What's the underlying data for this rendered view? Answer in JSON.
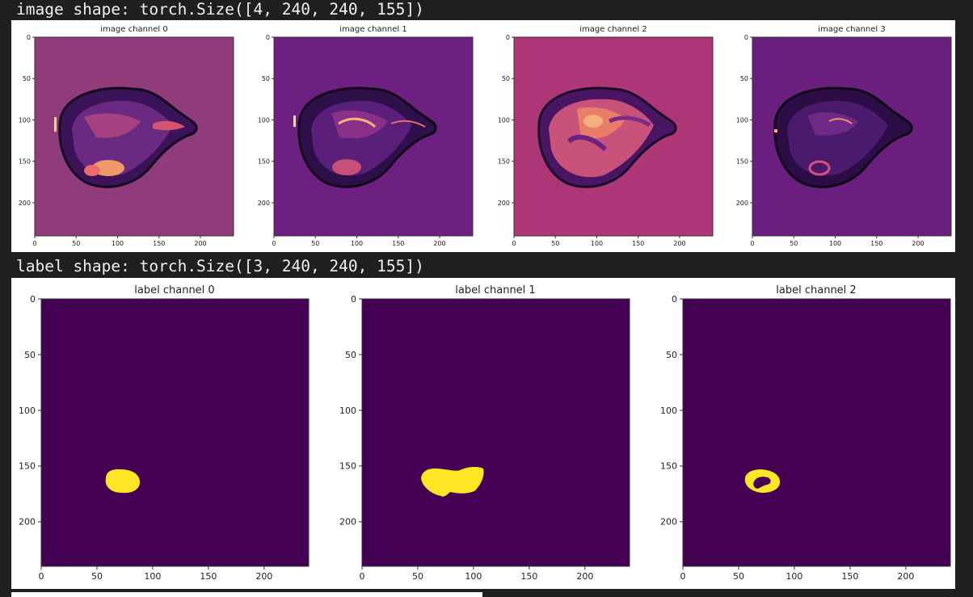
{
  "output": {
    "line1": "image shape: torch.Size([4, 240, 240, 155])",
    "line2": "label shape: torch.Size([3, 240, 240, 155])"
  },
  "image_panels": [
    {
      "title": "image channel 0",
      "bg_color": "#903b7a"
    },
    {
      "title": "image channel 1",
      "bg_color": "#6e1f82"
    },
    {
      "title": "image channel 2",
      "bg_color": "#ad3676"
    },
    {
      "title": "image channel 3",
      "bg_color": "#6a1f7e"
    }
  ],
  "label_panels": [
    {
      "title": "label channel 0",
      "bg_color": "#440154",
      "mask_color": "#fde725"
    },
    {
      "title": "label channel 1",
      "bg_color": "#440154",
      "mask_color": "#fde725"
    },
    {
      "title": "label channel 2",
      "bg_color": "#440154",
      "mask_color": "#fde725"
    }
  ],
  "axes": {
    "x_ticks": [
      "0",
      "50",
      "100",
      "150",
      "200"
    ],
    "y_ticks": [
      "0",
      "50",
      "100",
      "150",
      "200"
    ],
    "tick_values": [
      0,
      50,
      100,
      150,
      200
    ],
    "range": [
      0,
      240
    ]
  }
}
